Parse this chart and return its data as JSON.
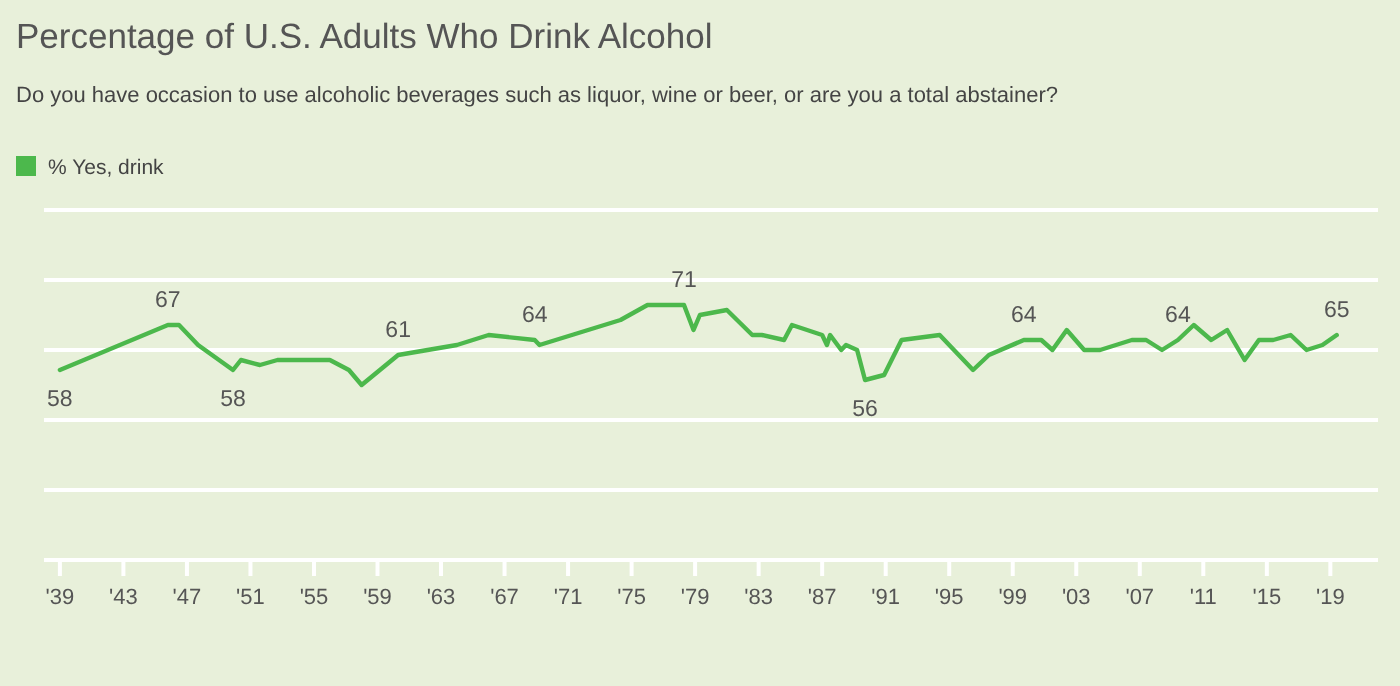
{
  "chart_data": {
    "type": "line",
    "title": "Percentage of U.S. Adults Who Drink Alcohol",
    "subtitle": "Do you have occasion to use alcoholic beverages such as liquor, wine or beer, or are you a total abstainer?",
    "x": [
      1939,
      1945.8,
      1946.5,
      1947.7,
      1949.9,
      1950.4,
      1951.6,
      1952.7,
      1956,
      1957.2,
      1958,
      1960.3,
      1964,
      1966,
      1968.9,
      1969.2,
      1974.3,
      1976,
      1978.3,
      1978.9,
      1979.3,
      1981,
      1982.6,
      1983.2,
      1984.6,
      1985.1,
      1987,
      1987.3,
      1987.5,
      1988.2,
      1988.5,
      1989.2,
      1989.7,
      1990.9,
      1992,
      1994.4,
      1996.5,
      1997.5,
      1999.7,
      2000.8,
      2001.5,
      2002.4,
      2003.5,
      2004.5,
      2006.5,
      2007.4,
      2008.4,
      2009.4,
      2010.4,
      2011.5,
      2012.5,
      2013.6,
      2014.5,
      2015.4,
      2016.5,
      2017.5,
      2018.5,
      2019.4
    ],
    "series": [
      {
        "name": "% Yes, drink",
        "color": "#4cb84c",
        "values": [
          58,
          67,
          67,
          63,
          58,
          60,
          59,
          60,
          60,
          58,
          55,
          61,
          63,
          65,
          64,
          63,
          68,
          71,
          71,
          66,
          69,
          70,
          65,
          65,
          64,
          67,
          65,
          63,
          65,
          62,
          63,
          62,
          56,
          57,
          64,
          65,
          58,
          61,
          64,
          64,
          62,
          66,
          62,
          62,
          64,
          64,
          62,
          64,
          67,
          64,
          66,
          60,
          64,
          64,
          65,
          62,
          63,
          65
        ],
        "value_labels": [
          "58",
          "67",
          null,
          null,
          "58",
          null,
          null,
          null,
          null,
          null,
          null,
          "61",
          null,
          null,
          "64",
          null,
          null,
          null,
          "71",
          null,
          null,
          null,
          null,
          null,
          null,
          null,
          null,
          null,
          null,
          null,
          null,
          null,
          "56",
          null,
          null,
          null,
          null,
          null,
          "64",
          null,
          null,
          null,
          null,
          null,
          null,
          null,
          null,
          "64",
          null,
          null,
          null,
          null,
          null,
          null,
          null,
          null,
          null,
          "65"
        ]
      }
    ],
    "xlim": [
      1938,
      2022
    ],
    "xticks": [
      {
        "value": 1939,
        "label": "'39"
      },
      {
        "value": 1943,
        "label": "'43"
      },
      {
        "value": 1947,
        "label": "'47"
      },
      {
        "value": 1951,
        "label": "'51"
      },
      {
        "value": 1955,
        "label": "'55"
      },
      {
        "value": 1959,
        "label": "'59"
      },
      {
        "value": 1963,
        "label": "'63"
      },
      {
        "value": 1967,
        "label": "'67"
      },
      {
        "value": 1971,
        "label": "'71"
      },
      {
        "value": 1975,
        "label": "'75"
      },
      {
        "value": 1979,
        "label": "'79"
      },
      {
        "value": 1983,
        "label": "'83"
      },
      {
        "value": 1987,
        "label": "'87"
      },
      {
        "value": 1991,
        "label": "'91"
      },
      {
        "value": 1995,
        "label": "'95"
      },
      {
        "value": 1999,
        "label": "'99"
      },
      {
        "value": 2003,
        "label": "'03"
      },
      {
        "value": 2007,
        "label": "'07"
      },
      {
        "value": 2011,
        "label": "'11"
      },
      {
        "value": 2015,
        "label": "'15"
      },
      {
        "value": 2019,
        "label": "'19"
      }
    ],
    "ylim": [
      20,
      90
    ],
    "yticks": [
      {
        "value": 20,
        "label": null
      },
      {
        "value": 34,
        "label": null
      },
      {
        "value": 48,
        "label": null
      },
      {
        "value": 62,
        "label": null
      },
      {
        "value": 76,
        "label": null
      },
      {
        "value": 90,
        "label": null
      }
    ],
    "tick_labels": "x",
    "grid": "y",
    "legend": "top left",
    "marker": "none",
    "line_style": "solid"
  }
}
